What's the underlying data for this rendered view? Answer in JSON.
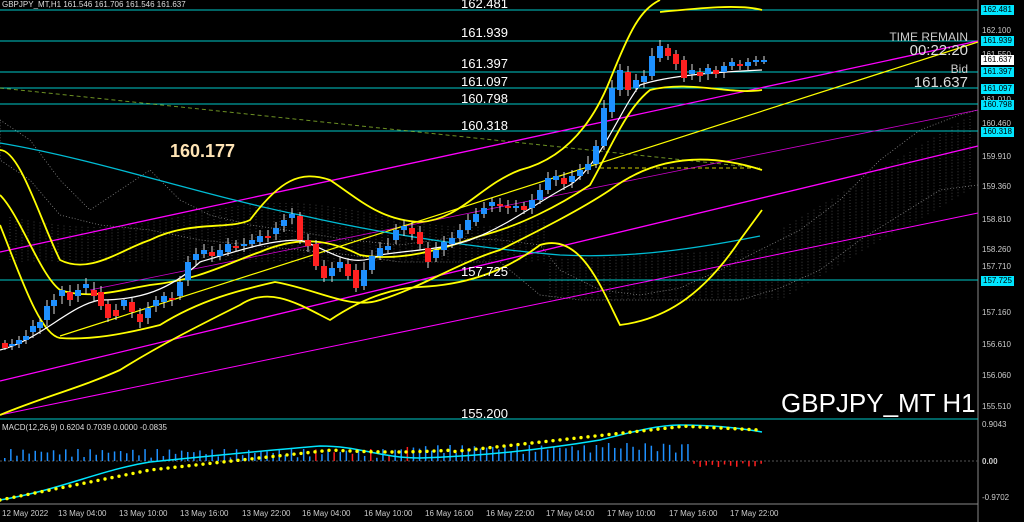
{
  "header": {
    "text": "GBPJPY_MT,H1  161.546 161.706 161.546 161.637"
  },
  "levels": [
    {
      "label": "162.481"
    },
    {
      "label": "161.939"
    },
    {
      "label": "161.397"
    },
    {
      "label": "161.097"
    },
    {
      "label": "160.798"
    },
    {
      "label": "160.318"
    },
    {
      "label": "157.725"
    },
    {
      "label": "155.200"
    }
  ],
  "callout": "160.177",
  "timer": {
    "title": "TIME REMAIN",
    "value": "00:22:20",
    "bid_label": "Bid",
    "bid_value": "161.637"
  },
  "symbol_title": "GBPJPY_MT H1",
  "price_axis": [
    "162.100",
    "161.550",
    "161.010",
    "160.460",
    "159.910",
    "159.360",
    "158.810",
    "158.260",
    "157.710",
    "157.160",
    "156.610",
    "156.060",
    "155.510"
  ],
  "price_boxes": {
    "box_162481": "162.481",
    "box_161939": "161.939",
    "box_161637": "161.637",
    "box_161397": "161.397",
    "box_161097": "161.097",
    "box_160798": "160.798",
    "box_160318": "160.318",
    "box_157725": "157.725"
  },
  "macd": {
    "header": "MACD(12,26,9) 0.6204 0.7039 0.0000 -0.0835",
    "axis": [
      "0.9043",
      "0.00",
      "-0.9702"
    ]
  },
  "time_axis": [
    "12 May 2022",
    "13 May 04:00",
    "13 May 10:00",
    "13 May 16:00",
    "13 May 22:00",
    "16 May 04:00",
    "16 May 10:00",
    "16 May 16:00",
    "16 May 22:00",
    "17 May 04:00",
    "17 May 10:00",
    "17 May 16:00",
    "17 May 22:00"
  ],
  "colors": {
    "level_line": "#00c8c8",
    "up_candle": "#1e90ff",
    "down_candle": "#ff2020",
    "bollinger": "#ffff00",
    "channel": "#ff00ff",
    "ma_white": "#ffffff",
    "ma_cyan": "#00bcd4",
    "macd_line": "#00e5ff",
    "signal": "#ffff00"
  }
}
